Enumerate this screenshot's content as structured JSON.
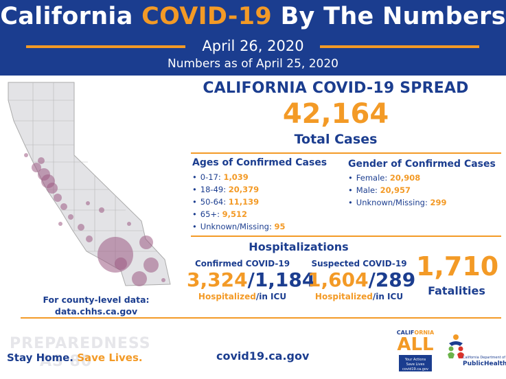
{
  "header": {
    "title_part1": "California ",
    "title_part2": "COVID-19",
    "title_part3": " By The Numbers",
    "date": "April 26, 2020",
    "as_of": "Numbers as of April 25, 2020"
  },
  "map": {
    "note_line1": "For county-level data:",
    "note_line2": "data.chhs.ca.gov"
  },
  "spread": {
    "title": "CALIFORNIA COVID-19 SPREAD",
    "total_cases": "42,164",
    "total_label": "Total Cases"
  },
  "ages": {
    "title": "Ages of Confirmed Cases",
    "items": [
      {
        "label": "0-17: ",
        "value": "1,039"
      },
      {
        "label": "18-49: ",
        "value": "20,379"
      },
      {
        "label": "50-64: ",
        "value": "11,139"
      },
      {
        "label": "65+: ",
        "value": "9,512"
      },
      {
        "label": "Unknown/Missing: ",
        "value": "95"
      }
    ]
  },
  "gender": {
    "title": "Gender of Confirmed Cases",
    "items": [
      {
        "label": "Female: ",
        "value": "20,908"
      },
      {
        "label": "Male: ",
        "value": "20,957"
      },
      {
        "label": "Unknown/Missing: ",
        "value": "299"
      }
    ]
  },
  "hospitalizations": {
    "title": "Hospitalizations",
    "confirmed": {
      "heading": "Confirmed COVID-19",
      "hospitalized": "3,324",
      "icu": "1,184"
    },
    "suspected": {
      "heading": "Suspected COVID-19",
      "hospitalized": "1,604",
      "icu": "289"
    },
    "slash": "/",
    "foot_hosp": "Hospitalized",
    "foot_icu": "/in ICU"
  },
  "fatalities": {
    "value": "1,710",
    "label": "Fatalities"
  },
  "footer": {
    "faded_line1": "PREPAREDNESS",
    "faded_line2": "AS 80",
    "slogan_part1": "Stay Home. ",
    "slogan_part2": "Save Lives.",
    "website": "covid19.ca.gov",
    "ca_all_word_1": "CALIF",
    "ca_all_word_2": "ORNIA",
    "ca_all_big": "ALL",
    "ca_all_box_line1": "Your Actions",
    "ca_all_box_line2": "Save Lives",
    "ca_all_box_line3": "covid19.ca.gov",
    "cdph_line1": "California Department of",
    "cdph_line2": "PublicHealth"
  },
  "colors": {
    "navy": "#1b3d8f",
    "orange": "#f39a26",
    "map_fill": "#e3e3e6",
    "bubble": "#9d5b83"
  }
}
